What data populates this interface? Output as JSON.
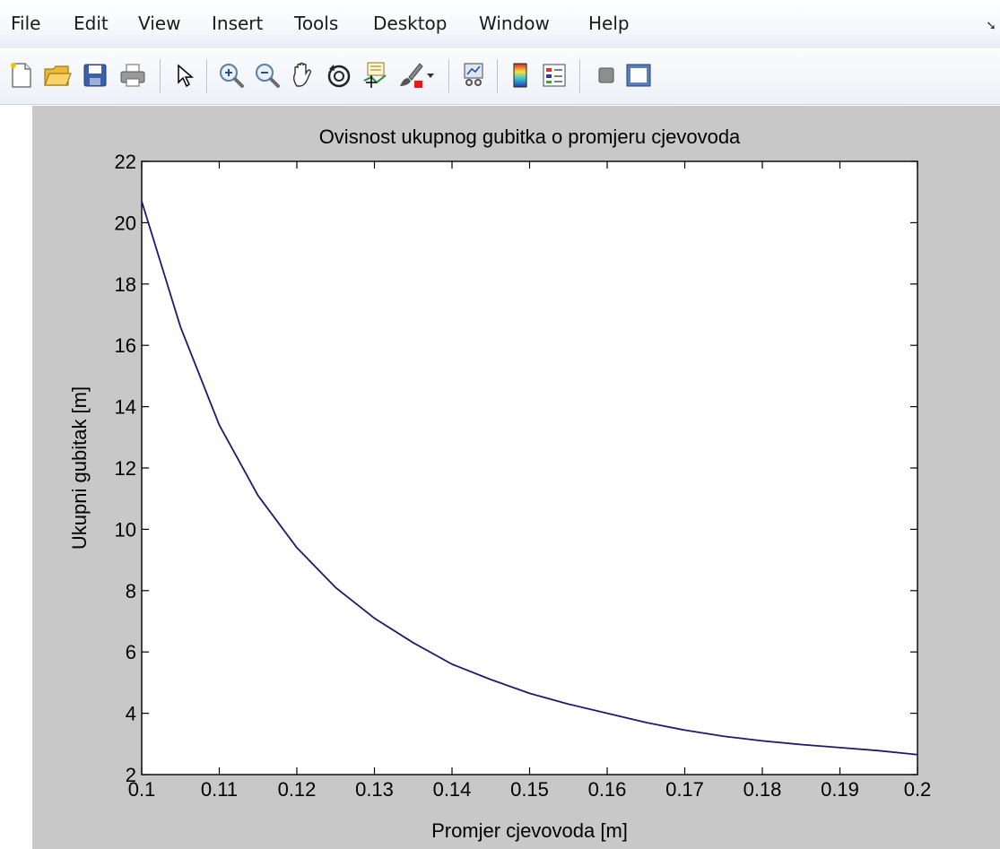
{
  "menu": {
    "items": [
      "File",
      "Edit",
      "View",
      "Insert",
      "Tools",
      "Desktop",
      "Window",
      "Help"
    ]
  },
  "toolbar": {
    "buttons": [
      "new-figure-icon",
      "open-file-icon",
      "save-icon",
      "print-icon",
      "pointer-icon",
      "zoom-in-icon",
      "zoom-out-icon",
      "pan-hand-icon",
      "rotate-3d-icon",
      "data-cursor-icon",
      "brush-icon",
      "brush-dropdown-icon",
      "link-plot-icon",
      "colorbar-icon",
      "legend-icon",
      "hide-plot-tools-icon",
      "show-plot-tools-icon"
    ]
  },
  "chart_data": {
    "type": "line",
    "title": "Ovisnost ukupnog gubitka o promjeru cjevovoda",
    "xlabel": "Promjer cjevovoda [m]",
    "ylabel": "Ukupni gubitak [m]",
    "xlim": [
      0.1,
      0.2
    ],
    "ylim": [
      2,
      22
    ],
    "xticks": [
      "0.1",
      "0.11",
      "0.12",
      "0.13",
      "0.14",
      "0.15",
      "0.16",
      "0.17",
      "0.18",
      "0.19",
      "0.2"
    ],
    "yticks": [
      "2",
      "4",
      "6",
      "8",
      "10",
      "12",
      "14",
      "16",
      "18",
      "20",
      "22"
    ],
    "grid": false,
    "line_color": "#1f1a6e",
    "series": [
      {
        "x": [
          0.1,
          0.105,
          0.11,
          0.115,
          0.12,
          0.125,
          0.13,
          0.135,
          0.14,
          0.145,
          0.15,
          0.155,
          0.16,
          0.165,
          0.17,
          0.175,
          0.18,
          0.185,
          0.19,
          0.195,
          0.2
        ],
        "y": [
          20.7,
          16.6,
          13.4,
          11.1,
          9.4,
          8.1,
          7.1,
          6.3,
          5.6,
          5.1,
          4.65,
          4.3,
          4.0,
          3.7,
          3.45,
          3.25,
          3.1,
          2.98,
          2.88,
          2.78,
          2.65
        ]
      }
    ]
  }
}
